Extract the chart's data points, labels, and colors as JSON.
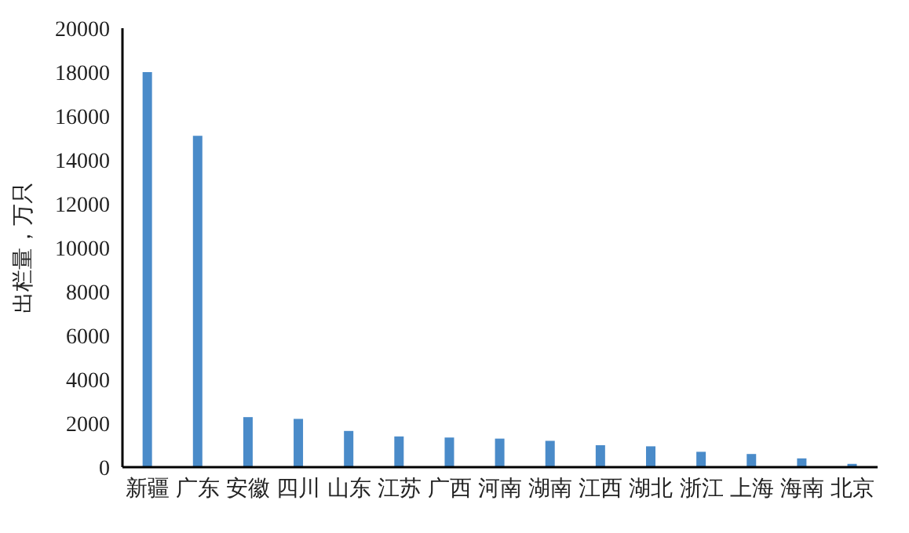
{
  "chart_data": {
    "type": "bar",
    "ylabel": "出栏量，万只",
    "categories": [
      "新疆",
      "广东",
      "安徽",
      "四川",
      "山东",
      "江苏",
      "广西",
      "河南",
      "湖南",
      "江西",
      "湖北",
      "浙江",
      "上海",
      "海南",
      "北京"
    ],
    "values": [
      18000,
      15100,
      2280,
      2200,
      1650,
      1400,
      1350,
      1300,
      1200,
      1000,
      950,
      700,
      600,
      400,
      150
    ],
    "color": "#4a8bc9",
    "ylim": [
      0,
      20000
    ],
    "yticks": [
      0,
      2000,
      4000,
      6000,
      8000,
      10000,
      12000,
      14000,
      16000,
      18000,
      20000
    ],
    "grid": false
  }
}
